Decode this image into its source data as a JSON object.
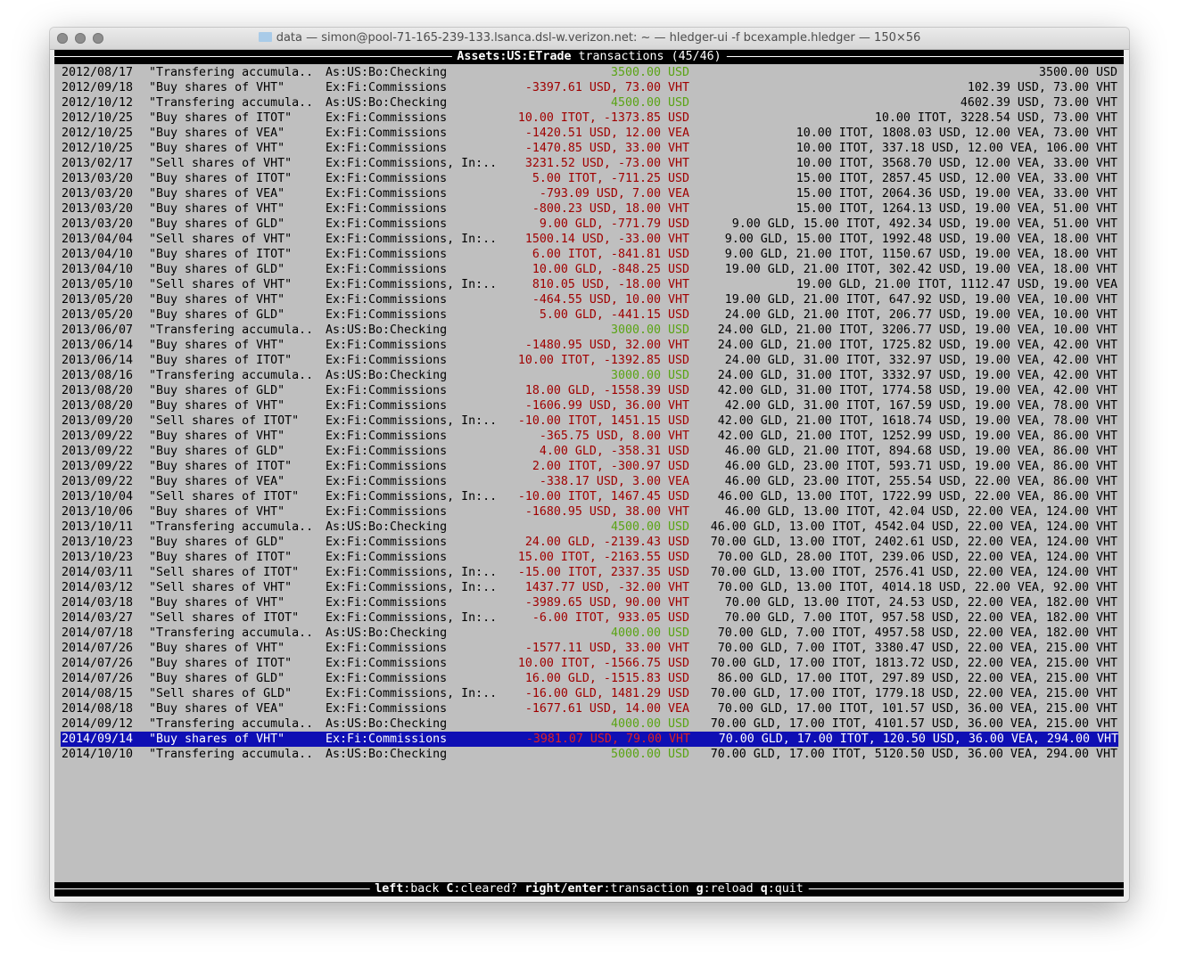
{
  "window": {
    "title": "data — simon@pool-71-165-239-133.lsanca.dsl-w.verizon.net: ~ — hledger-ui -f bcexample.hledger — 150×56"
  },
  "header": {
    "account": "Assets:US:ETrade",
    "label": "transactions",
    "count": "(45/46)"
  },
  "colors": {
    "in": "#5aa414",
    "out": "#a00000",
    "selected_bg": "#0f0fb4",
    "selected_out": "#e02020"
  },
  "selected_index": 44,
  "rows": [
    [
      "2012/08/17",
      "\"Transfering accumula..",
      "As:US:Bo:Checking",
      "3500.00 USD",
      "3500.00 USD",
      "in"
    ],
    [
      "2012/09/18",
      "\"Buy shares of VHT\"",
      "Ex:Fi:Commissions",
      "-3397.61 USD, 73.00 VHT",
      "102.39 USD, 73.00 VHT",
      "out"
    ],
    [
      "2012/10/12",
      "\"Transfering accumula..",
      "As:US:Bo:Checking",
      "4500.00 USD",
      "4602.39 USD, 73.00 VHT",
      "in"
    ],
    [
      "2012/10/25",
      "\"Buy shares of ITOT\"",
      "Ex:Fi:Commissions",
      "10.00 ITOT, -1373.85 USD",
      "10.00 ITOT, 3228.54 USD, 73.00 VHT",
      "out"
    ],
    [
      "2012/10/25",
      "\"Buy shares of VEA\"",
      "Ex:Fi:Commissions",
      "-1420.51 USD, 12.00 VEA",
      "10.00 ITOT, 1808.03 USD, 12.00 VEA, 73.00 VHT",
      "out"
    ],
    [
      "2012/10/25",
      "\"Buy shares of VHT\"",
      "Ex:Fi:Commissions",
      "-1470.85 USD, 33.00 VHT",
      "10.00 ITOT, 337.18 USD, 12.00 VEA, 106.00 VHT",
      "out"
    ],
    [
      "2013/02/17",
      "\"Sell shares of VHT\"",
      "Ex:Fi:Commissions, In:..",
      "3231.52 USD, -73.00 VHT",
      "10.00 ITOT, 3568.70 USD, 12.00 VEA, 33.00 VHT",
      "out"
    ],
    [
      "2013/03/20",
      "\"Buy shares of ITOT\"",
      "Ex:Fi:Commissions",
      "5.00 ITOT, -711.25 USD",
      "15.00 ITOT, 2857.45 USD, 12.00 VEA, 33.00 VHT",
      "out"
    ],
    [
      "2013/03/20",
      "\"Buy shares of VEA\"",
      "Ex:Fi:Commissions",
      "-793.09 USD, 7.00 VEA",
      "15.00 ITOT, 2064.36 USD, 19.00 VEA, 33.00 VHT",
      "out"
    ],
    [
      "2013/03/20",
      "\"Buy shares of VHT\"",
      "Ex:Fi:Commissions",
      "-800.23 USD, 18.00 VHT",
      "15.00 ITOT, 1264.13 USD, 19.00 VEA, 51.00 VHT",
      "out"
    ],
    [
      "2013/03/20",
      "\"Buy shares of GLD\"",
      "Ex:Fi:Commissions",
      "9.00 GLD, -771.79 USD",
      "9.00 GLD, 15.00 ITOT, 492.34 USD, 19.00 VEA, 51.00 VHT",
      "out"
    ],
    [
      "2013/04/04",
      "\"Sell shares of VHT\"",
      "Ex:Fi:Commissions, In:..",
      "1500.14 USD, -33.00 VHT",
      "9.00 GLD, 15.00 ITOT, 1992.48 USD, 19.00 VEA, 18.00 VHT",
      "out"
    ],
    [
      "2013/04/10",
      "\"Buy shares of ITOT\"",
      "Ex:Fi:Commissions",
      "6.00 ITOT, -841.81 USD",
      "9.00 GLD, 21.00 ITOT, 1150.67 USD, 19.00 VEA, 18.00 VHT",
      "out"
    ],
    [
      "2013/04/10",
      "\"Buy shares of GLD\"",
      "Ex:Fi:Commissions",
      "10.00 GLD, -848.25 USD",
      "19.00 GLD, 21.00 ITOT, 302.42 USD, 19.00 VEA, 18.00 VHT",
      "out"
    ],
    [
      "2013/05/10",
      "\"Sell shares of VHT\"",
      "Ex:Fi:Commissions, In:..",
      "810.05 USD, -18.00 VHT",
      "19.00 GLD, 21.00 ITOT, 1112.47 USD, 19.00 VEA",
      "out"
    ],
    [
      "2013/05/20",
      "\"Buy shares of VHT\"",
      "Ex:Fi:Commissions",
      "-464.55 USD, 10.00 VHT",
      "19.00 GLD, 21.00 ITOT, 647.92 USD, 19.00 VEA, 10.00 VHT",
      "out"
    ],
    [
      "2013/05/20",
      "\"Buy shares of GLD\"",
      "Ex:Fi:Commissions",
      "5.00 GLD, -441.15 USD",
      "24.00 GLD, 21.00 ITOT, 206.77 USD, 19.00 VEA, 10.00 VHT",
      "out"
    ],
    [
      "2013/06/07",
      "\"Transfering accumula..",
      "As:US:Bo:Checking",
      "3000.00 USD",
      "24.00 GLD, 21.00 ITOT, 3206.77 USD, 19.00 VEA, 10.00 VHT",
      "in"
    ],
    [
      "2013/06/14",
      "\"Buy shares of VHT\"",
      "Ex:Fi:Commissions",
      "-1480.95 USD, 32.00 VHT",
      "24.00 GLD, 21.00 ITOT, 1725.82 USD, 19.00 VEA, 42.00 VHT",
      "out"
    ],
    [
      "2013/06/14",
      "\"Buy shares of ITOT\"",
      "Ex:Fi:Commissions",
      "10.00 ITOT, -1392.85 USD",
      "24.00 GLD, 31.00 ITOT, 332.97 USD, 19.00 VEA, 42.00 VHT",
      "out"
    ],
    [
      "2013/08/16",
      "\"Transfering accumula..",
      "As:US:Bo:Checking",
      "3000.00 USD",
      "24.00 GLD, 31.00 ITOT, 3332.97 USD, 19.00 VEA, 42.00 VHT",
      "in"
    ],
    [
      "2013/08/20",
      "\"Buy shares of GLD\"",
      "Ex:Fi:Commissions",
      "18.00 GLD, -1558.39 USD",
      "42.00 GLD, 31.00 ITOT, 1774.58 USD, 19.00 VEA, 42.00 VHT",
      "out"
    ],
    [
      "2013/08/20",
      "\"Buy shares of VHT\"",
      "Ex:Fi:Commissions",
      "-1606.99 USD, 36.00 VHT",
      "42.00 GLD, 31.00 ITOT, 167.59 USD, 19.00 VEA, 78.00 VHT",
      "out"
    ],
    [
      "2013/09/20",
      "\"Sell shares of ITOT\"",
      "Ex:Fi:Commissions, In:..",
      "-10.00 ITOT, 1451.15 USD",
      "42.00 GLD, 21.00 ITOT, 1618.74 USD, 19.00 VEA, 78.00 VHT",
      "out"
    ],
    [
      "2013/09/22",
      "\"Buy shares of VHT\"",
      "Ex:Fi:Commissions",
      "-365.75 USD, 8.00 VHT",
      "42.00 GLD, 21.00 ITOT, 1252.99 USD, 19.00 VEA, 86.00 VHT",
      "out"
    ],
    [
      "2013/09/22",
      "\"Buy shares of GLD\"",
      "Ex:Fi:Commissions",
      "4.00 GLD, -358.31 USD",
      "46.00 GLD, 21.00 ITOT, 894.68 USD, 19.00 VEA, 86.00 VHT",
      "out"
    ],
    [
      "2013/09/22",
      "\"Buy shares of ITOT\"",
      "Ex:Fi:Commissions",
      "2.00 ITOT, -300.97 USD",
      "46.00 GLD, 23.00 ITOT, 593.71 USD, 19.00 VEA, 86.00 VHT",
      "out"
    ],
    [
      "2013/09/22",
      "\"Buy shares of VEA\"",
      "Ex:Fi:Commissions",
      "-338.17 USD, 3.00 VEA",
      "46.00 GLD, 23.00 ITOT, 255.54 USD, 22.00 VEA, 86.00 VHT",
      "out"
    ],
    [
      "2013/10/04",
      "\"Sell shares of ITOT\"",
      "Ex:Fi:Commissions, In:..",
      "-10.00 ITOT, 1467.45 USD",
      "46.00 GLD, 13.00 ITOT, 1722.99 USD, 22.00 VEA, 86.00 VHT",
      "out"
    ],
    [
      "2013/10/06",
      "\"Buy shares of VHT\"",
      "Ex:Fi:Commissions",
      "-1680.95 USD, 38.00 VHT",
      "46.00 GLD, 13.00 ITOT, 42.04 USD, 22.00 VEA, 124.00 VHT",
      "out"
    ],
    [
      "2013/10/11",
      "\"Transfering accumula..",
      "As:US:Bo:Checking",
      "4500.00 USD",
      "46.00 GLD, 13.00 ITOT, 4542.04 USD, 22.00 VEA, 124.00 VHT",
      "in"
    ],
    [
      "2013/10/23",
      "\"Buy shares of GLD\"",
      "Ex:Fi:Commissions",
      "24.00 GLD, -2139.43 USD",
      "70.00 GLD, 13.00 ITOT, 2402.61 USD, 22.00 VEA, 124.00 VHT",
      "out"
    ],
    [
      "2013/10/23",
      "\"Buy shares of ITOT\"",
      "Ex:Fi:Commissions",
      "15.00 ITOT, -2163.55 USD",
      "70.00 GLD, 28.00 ITOT, 239.06 USD, 22.00 VEA, 124.00 VHT",
      "out"
    ],
    [
      "2014/03/11",
      "\"Sell shares of ITOT\"",
      "Ex:Fi:Commissions, In:..",
      "-15.00 ITOT, 2337.35 USD",
      "70.00 GLD, 13.00 ITOT, 2576.41 USD, 22.00 VEA, 124.00 VHT",
      "out"
    ],
    [
      "2014/03/12",
      "\"Sell shares of VHT\"",
      "Ex:Fi:Commissions, In:..",
      "1437.77 USD, -32.00 VHT",
      "70.00 GLD, 13.00 ITOT, 4014.18 USD, 22.00 VEA, 92.00 VHT",
      "out"
    ],
    [
      "2014/03/18",
      "\"Buy shares of VHT\"",
      "Ex:Fi:Commissions",
      "-3989.65 USD, 90.00 VHT",
      "70.00 GLD, 13.00 ITOT, 24.53 USD, 22.00 VEA, 182.00 VHT",
      "out"
    ],
    [
      "2014/03/27",
      "\"Sell shares of ITOT\"",
      "Ex:Fi:Commissions, In:..",
      "-6.00 ITOT, 933.05 USD",
      "70.00 GLD, 7.00 ITOT, 957.58 USD, 22.00 VEA, 182.00 VHT",
      "out"
    ],
    [
      "2014/07/18",
      "\"Transfering accumula..",
      "As:US:Bo:Checking",
      "4000.00 USD",
      "70.00 GLD, 7.00 ITOT, 4957.58 USD, 22.00 VEA, 182.00 VHT",
      "in"
    ],
    [
      "2014/07/26",
      "\"Buy shares of VHT\"",
      "Ex:Fi:Commissions",
      "-1577.11 USD, 33.00 VHT",
      "70.00 GLD, 7.00 ITOT, 3380.47 USD, 22.00 VEA, 215.00 VHT",
      "out"
    ],
    [
      "2014/07/26",
      "\"Buy shares of ITOT\"",
      "Ex:Fi:Commissions",
      "10.00 ITOT, -1566.75 USD",
      "70.00 GLD, 17.00 ITOT, 1813.72 USD, 22.00 VEA, 215.00 VHT",
      "out"
    ],
    [
      "2014/07/26",
      "\"Buy shares of GLD\"",
      "Ex:Fi:Commissions",
      "16.00 GLD, -1515.83 USD",
      "86.00 GLD, 17.00 ITOT, 297.89 USD, 22.00 VEA, 215.00 VHT",
      "out"
    ],
    [
      "2014/08/15",
      "\"Sell shares of GLD\"",
      "Ex:Fi:Commissions, In:..",
      "-16.00 GLD, 1481.29 USD",
      "70.00 GLD, 17.00 ITOT, 1779.18 USD, 22.00 VEA, 215.00 VHT",
      "out"
    ],
    [
      "2014/08/18",
      "\"Buy shares of VEA\"",
      "Ex:Fi:Commissions",
      "-1677.61 USD, 14.00 VEA",
      "70.00 GLD, 17.00 ITOT, 101.57 USD, 36.00 VEA, 215.00 VHT",
      "out"
    ],
    [
      "2014/09/12",
      "\"Transfering accumula..",
      "As:US:Bo:Checking",
      "4000.00 USD",
      "70.00 GLD, 17.00 ITOT, 4101.57 USD, 36.00 VEA, 215.00 VHT",
      "in"
    ],
    [
      "2014/09/14",
      "\"Buy shares of VHT\"",
      "Ex:Fi:Commissions",
      "-3981.07 USD, 79.00 VHT",
      "70.00 GLD, 17.00 ITOT, 120.50 USD, 36.00 VEA, 294.00 VHT",
      "out"
    ],
    [
      "2014/10/10",
      "\"Transfering accumula..",
      "As:US:Bo:Checking",
      "5000.00 USD",
      "70.00 GLD, 17.00 ITOT, 5120.50 USD, 36.00 VEA, 294.00 VHT",
      "in"
    ]
  ],
  "footer": [
    {
      "key": "left",
      "action": "back"
    },
    {
      "key": "C",
      "action": "cleared?"
    },
    {
      "key": "right/enter",
      "action": "transaction"
    },
    {
      "key": "g",
      "action": "reload"
    },
    {
      "key": "q",
      "action": "quit"
    }
  ]
}
